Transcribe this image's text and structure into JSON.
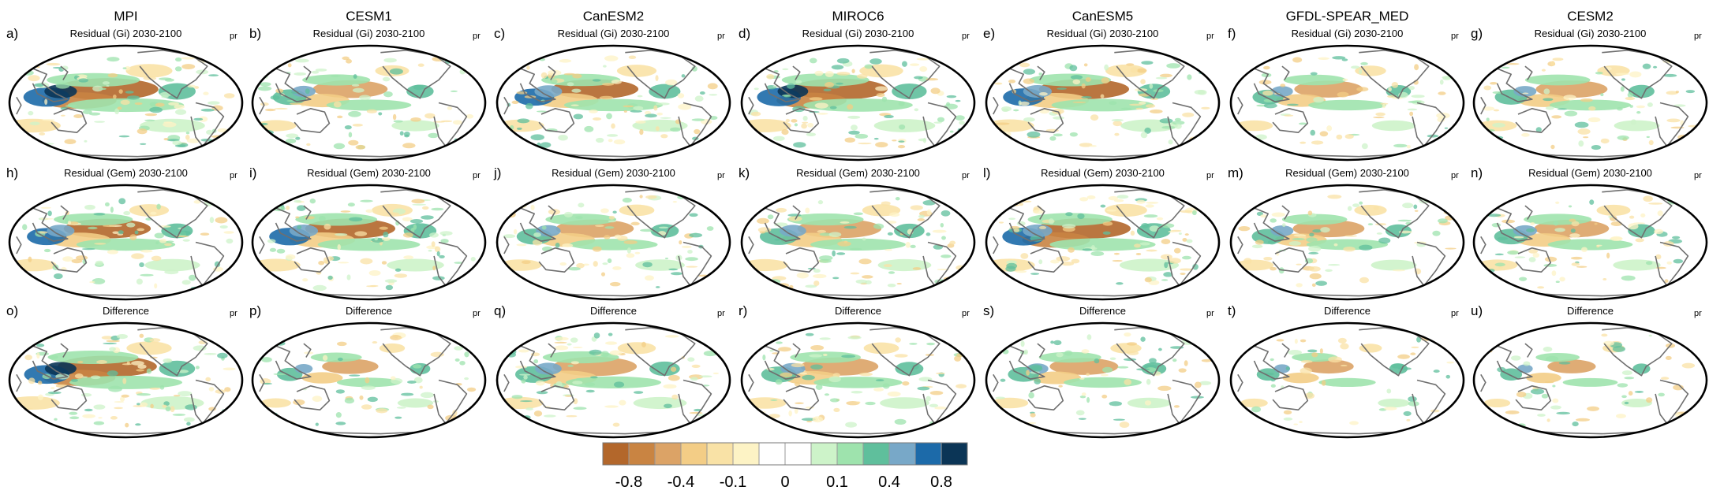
{
  "chart_data": {
    "type": "heatmap",
    "description_fields": "Panel grid of global precipitation (pr) residual and difference maps",
    "variable": "pr",
    "models": [
      "MPI",
      "CESM1",
      "CanESM2",
      "MIROC6",
      "CanESM5",
      "GFDL-SPEAR_MED",
      "CESM2"
    ],
    "rows": [
      {
        "title": "Residual (Gi) 2030-2100",
        "letters": [
          "a)",
          "b)",
          "c)",
          "d)",
          "e)",
          "f)",
          "g)"
        ]
      },
      {
        "title": "Residual (Gem) 2030-2100",
        "letters": [
          "h)",
          "i)",
          "j)",
          "k)",
          "l)",
          "m)",
          "n)"
        ]
      },
      {
        "title": "Difference",
        "letters": [
          "o)",
          "p)",
          "q)",
          "r)",
          "s)",
          "t)",
          "u)"
        ]
      }
    ],
    "intensity": [
      [
        1.0,
        0.55,
        0.75,
        0.9,
        0.8,
        0.45,
        0.5
      ],
      [
        0.75,
        0.8,
        0.6,
        0.7,
        0.85,
        0.5,
        0.55
      ],
      [
        0.95,
        0.25,
        0.7,
        0.6,
        0.45,
        0.15,
        0.12
      ]
    ],
    "colorbar": {
      "colors": [
        "#b3672b",
        "#c98442",
        "#dca366",
        "#f3cd86",
        "#f9e2a6",
        "#fdf3c5",
        "#ffffff",
        "#ffffff",
        "#cdf3c9",
        "#9ee3ad",
        "#5fbf9c",
        "#78a8c8",
        "#1c6aa9",
        "#0b3556"
      ],
      "tick_labels": [
        "-0.8",
        "-0.4",
        "-0.1",
        "0",
        "0.1",
        "0.4",
        "0.8"
      ]
    }
  }
}
